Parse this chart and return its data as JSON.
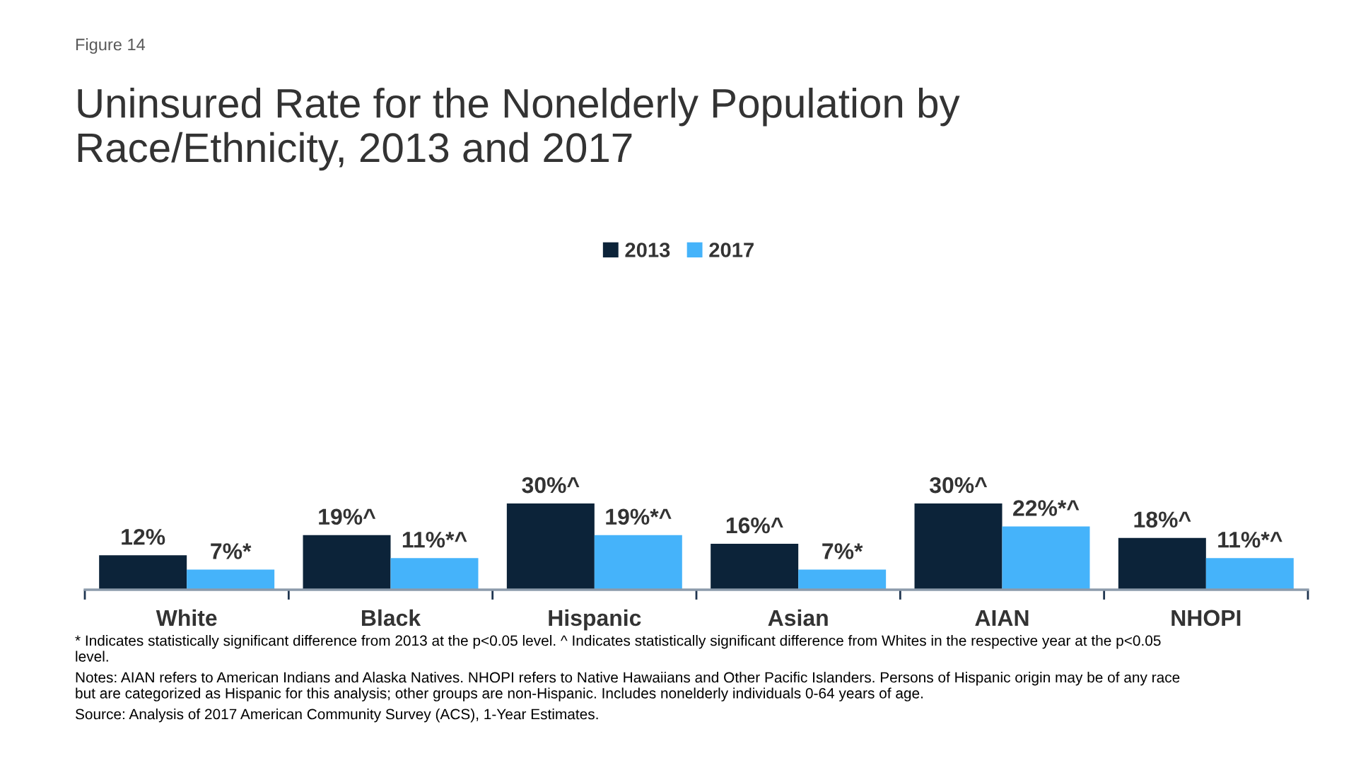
{
  "chart_data": {
    "type": "bar",
    "title": "Uninsured Rate for the Nonelderly Population by\nRace/Ethnicity, 2013 and 2017",
    "categories": [
      "White",
      "Black",
      "Hispanic",
      "Asian",
      "AIAN",
      "NHOPI"
    ],
    "series": [
      {
        "name": "2013",
        "color": "#0c2339",
        "values": [
          12,
          19,
          30,
          16,
          30,
          18
        ],
        "value_labels": [
          "12%",
          "19%^",
          "30%^",
          "16%^",
          "30%^",
          "18%^"
        ]
      },
      {
        "name": "2017",
        "color": "#45b3fa",
        "values": [
          7,
          11,
          19,
          7,
          22,
          11
        ],
        "value_labels": [
          "7%*",
          "11%*^",
          "19%*^",
          "7%*",
          "22%*^",
          "11%*^"
        ]
      }
    ],
    "legend": "top",
    "annotations": [
      "Figure 14",
      "* Indicates statistically significant difference from 2013 at the p<0.05 level. ^ Indicates statistically significant difference from Whites in the respective year at the p<0.05\nlevel.",
      "Notes: AIAN refers to American Indians and Alaska Natives. NHOPI refers to Native Hawaiians and Other Pacific Islanders. Persons of Hispanic origin may be of any race\nbut are categorized as Hispanic for this analysis; other groups are non-Hispanic. Includes nonelderly individuals 0-64 years of age.",
      "Source: Analysis of 2017 American Community Survey (ACS), 1-Year Estimates."
    ]
  }
}
